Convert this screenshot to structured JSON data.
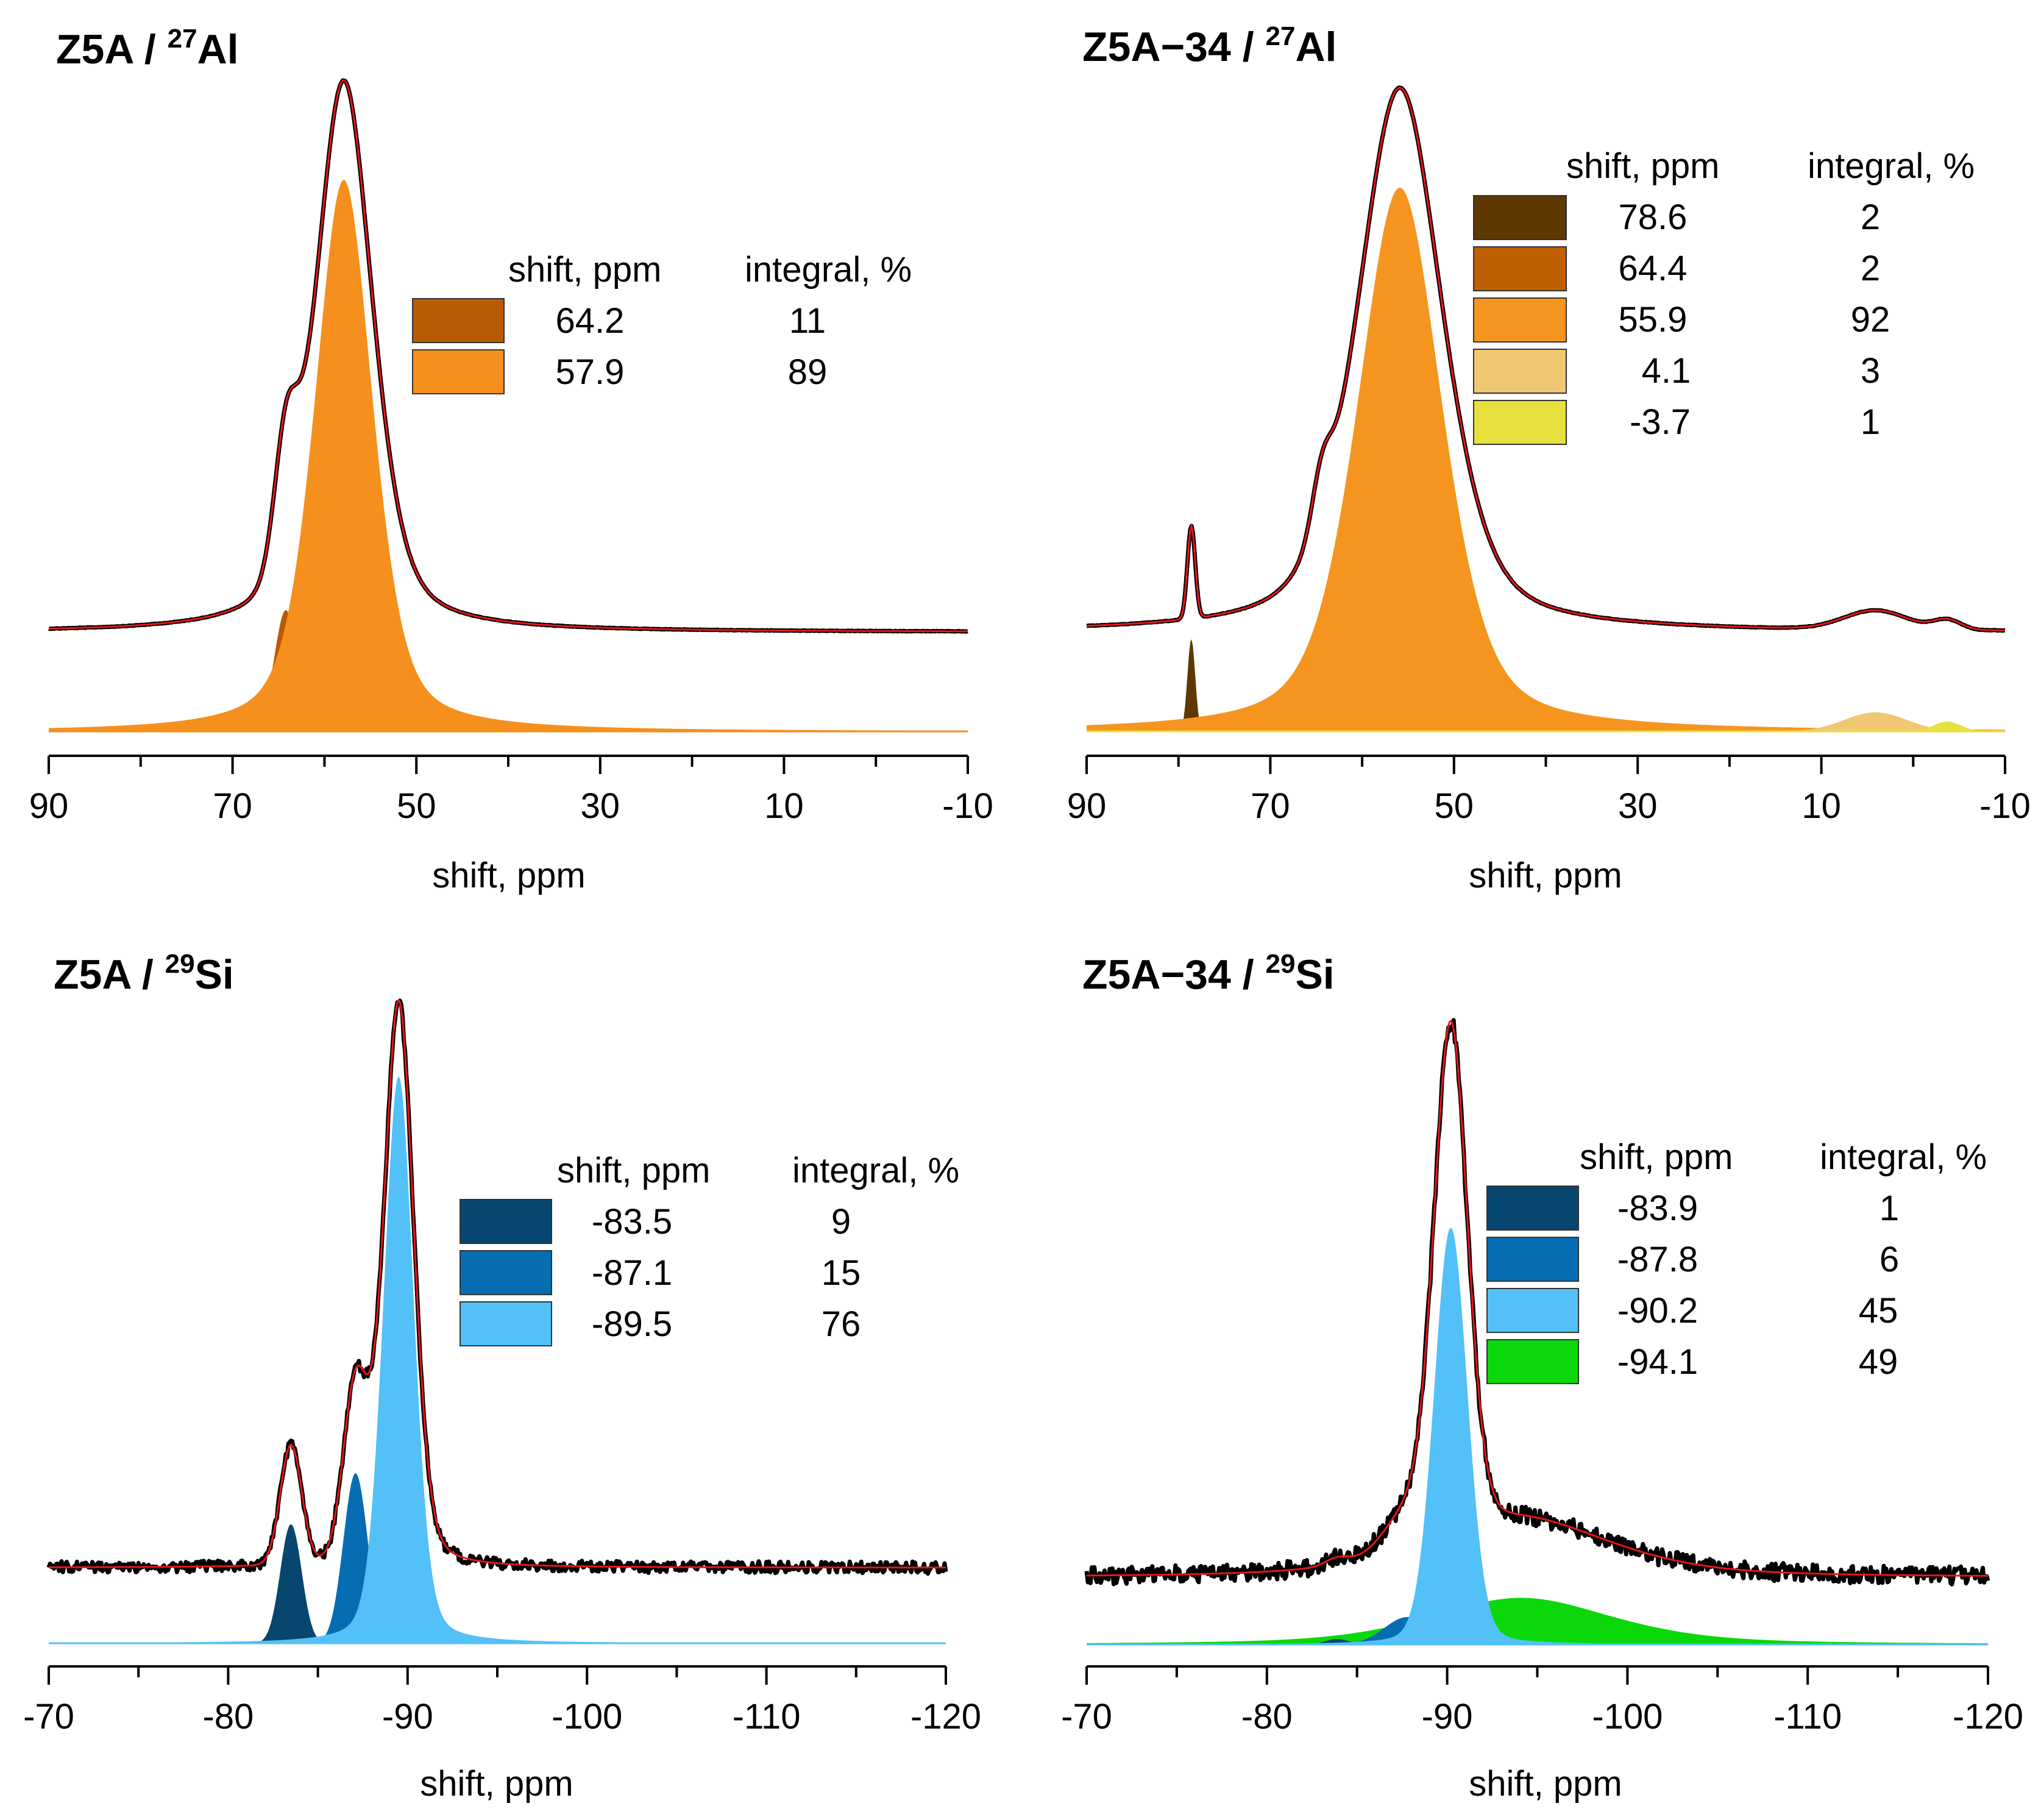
{
  "chart_data": [
    {
      "id": "z5a-al",
      "type": "area",
      "title": {
        "main": "Z5A / ",
        "isotope_mass": "27",
        "element": "Al"
      },
      "xlabel": "shift, ppm",
      "xlim": [
        90,
        -10
      ],
      "xticks": [
        "90",
        "70",
        "50",
        "30",
        "10",
        "-10"
      ],
      "legend": {
        "header_shift": "shift, ppm",
        "header_integral": "integral, %",
        "rows": [
          {
            "shift": "64.2",
            "integral": "11",
            "color": "#b85b03"
          },
          {
            "shift": "57.9",
            "integral": "89",
            "color": "#f5901e"
          }
        ]
      },
      "components": [
        {
          "center": 64.2,
          "fwhm": 3.0,
          "height": 0.22,
          "eta": 0.1,
          "color": "#b85b03"
        },
        {
          "center": 57.9,
          "fwhm": 7.5,
          "height": 1.0,
          "eta": 0.45,
          "color": "#f5901e"
        }
      ]
    },
    {
      "id": "z5a34-al",
      "type": "area",
      "title": {
        "main": "Z5A−34  / ",
        "isotope_mass": "27",
        "element": "Al"
      },
      "xlabel": "shift, ppm",
      "xlim": [
        90,
        -10
      ],
      "xticks": [
        "90",
        "70",
        "50",
        "30",
        "10",
        "-10"
      ],
      "legend": {
        "header_shift": "shift, ppm",
        "header_integral": "integral, %",
        "rows": [
          {
            "shift": "78.6",
            "integral": "2",
            "color": "#5e3800"
          },
          {
            "shift": "64.4",
            "integral": "2",
            "color": "#c05e02"
          },
          {
            "shift": "55.9",
            "integral": "92",
            "color": "#f5951f"
          },
          {
            "shift": "4.1",
            "integral": "3",
            "color": "#f0c772"
          },
          {
            "shift": "-3.7",
            "integral": "1",
            "color": "#e8e03e"
          }
        ]
      },
      "components": [
        {
          "center": 78.6,
          "fwhm": 1.0,
          "height": 0.17,
          "eta": 0.0,
          "color": "#5e3800"
        },
        {
          "center": 64.4,
          "fwhm": 2.5,
          "height": 0.09,
          "eta": 0.0,
          "color": "#c05e02"
        },
        {
          "center": 55.9,
          "fwhm": 11.0,
          "height": 1.0,
          "eta": 0.45,
          "color": "#f5951f"
        },
        {
          "center": 4.1,
          "fwhm": 8.0,
          "height": 0.035,
          "eta": 0.0,
          "color": "#f0c772"
        },
        {
          "center": -3.7,
          "fwhm": 3.5,
          "height": 0.018,
          "eta": 0.0,
          "color": "#e8e03e"
        }
      ]
    },
    {
      "id": "z5a-si",
      "type": "area",
      "title": {
        "main": "Z5A / ",
        "isotope_mass": "29",
        "element": "Si"
      },
      "xlabel": "shift, ppm",
      "xlim": [
        -70,
        -120
      ],
      "xticks": [
        "-70",
        "-80",
        "-90",
        "-100",
        "-110",
        "-120"
      ],
      "legend": {
        "header_shift": "shift, ppm",
        "header_integral": "integral, %",
        "rows": [
          {
            "shift": "-83.5",
            "integral": "9",
            "color": "#07466f"
          },
          {
            "shift": "-87.1",
            "integral": "15",
            "color": "#076db3"
          },
          {
            "shift": "-89.5",
            "integral": "76",
            "color": "#53c0f7"
          }
        ]
      },
      "components": [
        {
          "center": -83.5,
          "fwhm": 1.4,
          "height": 0.21,
          "eta": 0.0,
          "color": "#07466f"
        },
        {
          "center": -87.1,
          "fwhm": 1.6,
          "height": 0.3,
          "eta": 0.0,
          "color": "#076db3"
        },
        {
          "center": -89.5,
          "fwhm": 2.0,
          "height": 1.0,
          "eta": 0.25,
          "color": "#53c0f7"
        }
      ]
    },
    {
      "id": "z5a34-si",
      "type": "area",
      "title": {
        "main": "Z5A−34  / ",
        "isotope_mass": "29",
        "element": "Si"
      },
      "xlabel": "shift, ppm",
      "xlim": [
        -70,
        -120
      ],
      "xticks": [
        "-70",
        "-80",
        "-90",
        "-100",
        "-110",
        "-120"
      ],
      "legend": {
        "header_shift": "shift, ppm",
        "header_integral": "integral, %",
        "rows": [
          {
            "shift": "-83.9",
            "integral": "1",
            "color": "#07466f"
          },
          {
            "shift": "-87.8",
            "integral": "6",
            "color": "#076db3"
          },
          {
            "shift": "-90.2",
            "integral": "45",
            "color": "#53c0f7"
          },
          {
            "shift": "-94.1",
            "integral": "49",
            "color": "#0ad80a"
          }
        ]
      },
      "components": [
        {
          "center": -94.1,
          "fwhm": 12.0,
          "height": 0.085,
          "eta": 0.5,
          "color": "#0ad80a"
        },
        {
          "center": -83.9,
          "fwhm": 1.5,
          "height": 0.01,
          "eta": 0.0,
          "color": "#07466f"
        },
        {
          "center": -87.8,
          "fwhm": 3.0,
          "height": 0.05,
          "eta": 0.0,
          "color": "#076db3"
        },
        {
          "center": -90.2,
          "fwhm": 2.2,
          "height": 0.76,
          "eta": 0.15,
          "color": "#53c0f7"
        }
      ]
    }
  ]
}
